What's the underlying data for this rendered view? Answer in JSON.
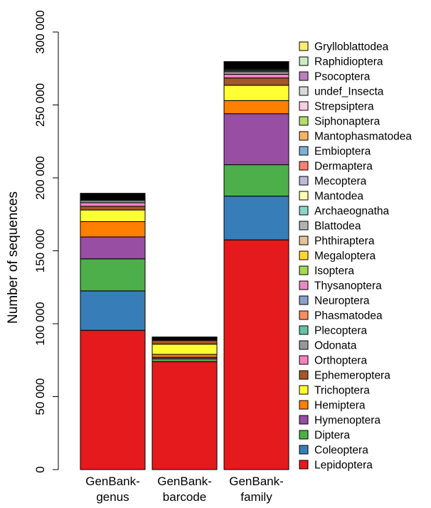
{
  "chart_data": {
    "type": "bar",
    "stacked": true,
    "title": "",
    "xlabel": "",
    "ylabel": "Number of sequences",
    "ylim": [
      0,
      300000
    ],
    "yticks": [
      0,
      50000,
      100000,
      150000,
      200000,
      250000,
      300000
    ],
    "ytick_labels": [
      "0",
      "50 000",
      "100 000",
      "150 000",
      "200 000",
      "250 000",
      "300 000"
    ],
    "categories": [
      [
        "GenBank-",
        "genus"
      ],
      [
        "GenBank-",
        "barcode"
      ],
      [
        "GenBank-",
        "family"
      ]
    ],
    "legend_position": "right",
    "series": [
      {
        "name": "Lepidoptera",
        "color": "#e41a1c",
        "values": [
          95500,
          74000,
          157500
        ]
      },
      {
        "name": "Coleoptera",
        "color": "#377eb8",
        "values": [
          27000,
          0,
          30000
        ]
      },
      {
        "name": "Diptera",
        "color": "#4daf4a",
        "values": [
          22000,
          2000,
          21500
        ]
      },
      {
        "name": "Hymenoptera",
        "color": "#984ea3",
        "values": [
          15000,
          1000,
          35000
        ]
      },
      {
        "name": "Hemiptera",
        "color": "#ff7f00",
        "values": [
          10500,
          2000,
          9000
        ]
      },
      {
        "name": "Trichoptera",
        "color": "#ffff33",
        "values": [
          8000,
          7000,
          10500
        ]
      },
      {
        "name": "Ephemeroptera",
        "color": "#a65628",
        "values": [
          2500,
          2500,
          5000
        ]
      },
      {
        "name": "Orthoptera",
        "color": "#f781bf",
        "values": [
          2500,
          600,
          2500
        ]
      },
      {
        "name": "Odonata",
        "color": "#999999",
        "values": [
          1500,
          400,
          1800
        ]
      },
      {
        "name": "Plecoptera",
        "color": "#66c2a5",
        "values": [
          600,
          300,
          800
        ]
      },
      {
        "name": "Phasmatodea",
        "color": "#fc8d62",
        "values": [
          500,
          100,
          600
        ]
      },
      {
        "name": "Neuroptera",
        "color": "#8da0cb",
        "values": [
          500,
          100,
          600
        ]
      },
      {
        "name": "Thysanoptera",
        "color": "#e78ac3",
        "values": [
          400,
          100,
          500
        ]
      },
      {
        "name": "Isoptera",
        "color": "#a6d854",
        "values": [
          400,
          100,
          500
        ]
      },
      {
        "name": "Megaloptera",
        "color": "#ffd92f",
        "values": [
          300,
          100,
          400
        ]
      },
      {
        "name": "Phthiraptera",
        "color": "#e5c494",
        "values": [
          300,
          100,
          400
        ]
      },
      {
        "name": "Blattodea",
        "color": "#b3b3b3",
        "values": [
          300,
          100,
          400
        ]
      },
      {
        "name": "Archaeognatha",
        "color": "#8dd3c7",
        "values": [
          200,
          100,
          300
        ]
      },
      {
        "name": "Mantodea",
        "color": "#ffffb3",
        "values": [
          200,
          100,
          300
        ]
      },
      {
        "name": "Mecoptera",
        "color": "#bebada",
        "values": [
          200,
          100,
          300
        ]
      },
      {
        "name": "Dermaptera",
        "color": "#fb8072",
        "values": [
          200,
          100,
          300
        ]
      },
      {
        "name": "Embioptera",
        "color": "#80b1d3",
        "values": [
          100,
          0,
          200
        ]
      },
      {
        "name": "Mantophasmatodea",
        "color": "#fdb462",
        "values": [
          100,
          0,
          200
        ]
      },
      {
        "name": "Siphonaptera",
        "color": "#b3de69",
        "values": [
          100,
          0,
          200
        ]
      },
      {
        "name": "Strepsiptera",
        "color": "#fccde5",
        "values": [
          100,
          0,
          200
        ]
      },
      {
        "name": "undef_Insecta",
        "color": "#d9d9d9",
        "values": [
          100,
          0,
          200
        ]
      },
      {
        "name": "Psocoptera",
        "color": "#bc80bd",
        "values": [
          100,
          0,
          200
        ]
      },
      {
        "name": "Raphidioptera",
        "color": "#ccebc5",
        "values": [
          100,
          0,
          200
        ]
      },
      {
        "name": "Grylloblattodea",
        "color": "#ffed6f",
        "values": [
          100,
          0,
          100
        ]
      }
    ]
  }
}
